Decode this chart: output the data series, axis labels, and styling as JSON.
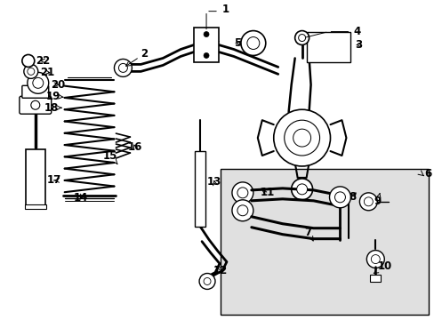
{
  "bg_color": "#ffffff",
  "fig_width": 4.89,
  "fig_height": 3.6,
  "dpi": 100,
  "lc": "#000000",
  "box_color": "#e8e8e8",
  "font_size": 7.5,
  "label_font_size": 8.5
}
